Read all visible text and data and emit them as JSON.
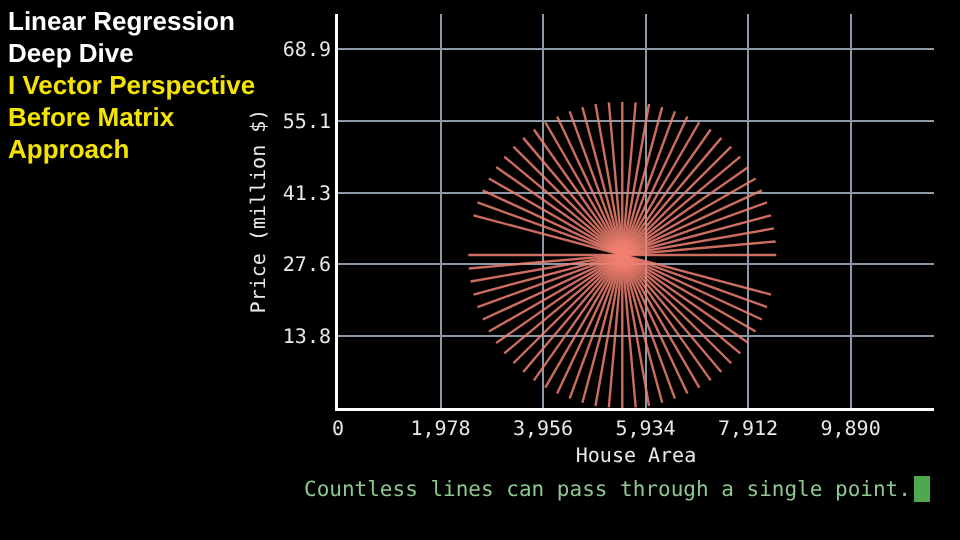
{
  "chart_data": {
    "type": "line",
    "title": "Linear Regression Deep Dive",
    "subtitle": "I Vector Perspective Before Matrix Approach",
    "xlabel": "House Area",
    "ylabel": "Price (million $)",
    "annotations": [
      "Countless lines can pass through a single point."
    ],
    "xlim": [
      0,
      11500
    ],
    "xticks": [
      0,
      {
        "value": 1978,
        "label": "1,978"
      },
      {
        "value": 3956,
        "label": "3,956"
      },
      {
        "value": 5934,
        "label": "5,934"
      },
      {
        "value": 7912,
        "label": "7,912"
      },
      {
        "value": 9890,
        "label": "9,890"
      }
    ],
    "ylim": [
      0,
      75.7
    ],
    "yticks": [
      13.8,
      27.6,
      41.3,
      55.1,
      68.9
    ],
    "grid": true,
    "marker": "none",
    "line_style": "solid",
    "series": [
      {
        "color": "#f08070",
        "x": [
          8457,
          2513
        ],
        "values": [
          29.4,
          29.4
        ]
      },
      {
        "color": "#f08070",
        "x": [
          8445,
          2525
        ],
        "values": [
          32.0,
          26.8
        ]
      },
      {
        "color": "#f08070",
        "x": [
          8412,
          2558
        ],
        "values": [
          34.5,
          24.3
        ]
      },
      {
        "color": "#f08070",
        "x": [
          8356,
          2614
        ],
        "values": [
          37.0,
          21.8
        ]
      },
      {
        "color": "#f08070",
        "x": [
          8279,
          2691
        ],
        "values": [
          39.5,
          19.4
        ]
      },
      {
        "color": "#f08070",
        "x": [
          8178,
          2792
        ],
        "values": [
          41.8,
          17.0
        ]
      },
      {
        "color": "#f08070",
        "x": [
          8059,
          2911
        ],
        "values": [
          44.1,
          14.7
        ]
      },
      {
        "color": "#f08070",
        "x": [
          7919,
          3051
        ],
        "values": [
          46.3,
          12.5
        ]
      },
      {
        "color": "#f08070",
        "x": [
          7762,
          3208
        ],
        "values": [
          48.3,
          10.5
        ]
      },
      {
        "color": "#f08070",
        "x": [
          7586,
          3384
        ],
        "values": [
          50.2,
          8.6
        ]
      },
      {
        "color": "#f08070",
        "x": [
          7396,
          3574
        ],
        "values": [
          51.9,
          6.9
        ]
      },
      {
        "color": "#f08070",
        "x": [
          7191,
          3779
        ],
        "values": [
          53.5,
          5.3
        ]
      },
      {
        "color": "#f08070",
        "x": [
          6971,
          3999
        ],
        "values": [
          54.9,
          3.9
        ]
      },
      {
        "color": "#f08070",
        "x": [
          6742,
          4228
        ],
        "values": [
          56.0,
          2.8
        ]
      },
      {
        "color": "#f08070",
        "x": [
          6501,
          4469
        ],
        "values": [
          57.0,
          1.8
        ]
      },
      {
        "color": "#f08070",
        "x": [
          6255,
          4715
        ],
        "values": [
          57.8,
          1.0
        ]
      },
      {
        "color": "#f08070",
        "x": [
          6002,
          4968
        ],
        "values": [
          58.4,
          0.4
        ]
      },
      {
        "color": "#f08070",
        "x": [
          5744,
          5226
        ],
        "values": [
          58.7,
          0.1
        ]
      },
      {
        "color": "#f08070",
        "x": [
          5485,
          5485
        ],
        "values": [
          58.8,
          0.0
        ]
      },
      {
        "color": "#f08070",
        "x": [
          5226,
          5744
        ],
        "values": [
          58.7,
          0.1
        ]
      },
      {
        "color": "#f08070",
        "x": [
          4968,
          6002
        ],
        "values": [
          58.4,
          0.4
        ]
      },
      {
        "color": "#f08070",
        "x": [
          4715,
          6255
        ],
        "values": [
          57.8,
          1.0
        ]
      },
      {
        "color": "#f08070",
        "x": [
          4469,
          6501
        ],
        "values": [
          57.0,
          1.8
        ]
      },
      {
        "color": "#f08070",
        "x": [
          4228,
          6742
        ],
        "values": [
          56.0,
          2.8
        ]
      },
      {
        "color": "#f08070",
        "x": [
          3999,
          6971
        ],
        "values": [
          54.9,
          3.9
        ]
      },
      {
        "color": "#f08070",
        "x": [
          3779,
          7191
        ],
        "values": [
          53.5,
          5.3
        ]
      },
      {
        "color": "#f08070",
        "x": [
          3574,
          7396
        ],
        "values": [
          51.9,
          6.9
        ]
      },
      {
        "color": "#f08070",
        "x": [
          3384,
          7586
        ],
        "values": [
          50.2,
          8.6
        ]
      },
      {
        "color": "#f08070",
        "x": [
          3208,
          7762
        ],
        "values": [
          48.3,
          10.5
        ]
      },
      {
        "color": "#f08070",
        "x": [
          3051,
          7919
        ],
        "values": [
          46.3,
          12.5
        ]
      },
      {
        "color": "#f08070",
        "x": [
          2911,
          8059
        ],
        "values": [
          44.1,
          14.7
        ]
      },
      {
        "color": "#f08070",
        "x": [
          2792,
          8178
        ],
        "values": [
          41.8,
          17.0
        ]
      },
      {
        "color": "#f08070",
        "x": [
          2691,
          8279
        ],
        "values": [
          39.5,
          19.4
        ]
      },
      {
        "color": "#f08070",
        "x": [
          2614,
          8356
        ],
        "values": [
          37.0,
          21.8
        ]
      }
    ]
  }
}
